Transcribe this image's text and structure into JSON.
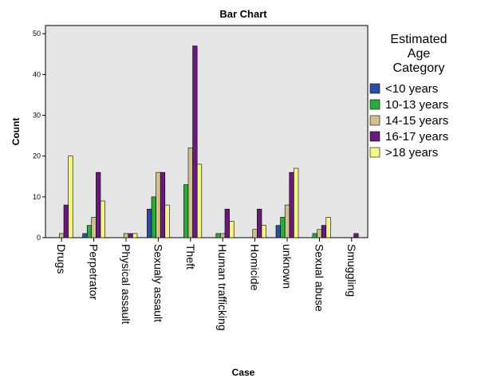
{
  "chart_data": {
    "type": "bar",
    "title": "Bar Chart",
    "xlabel": "Case",
    "ylabel": "Count",
    "ylim": [
      0,
      52
    ],
    "yticks": [
      0,
      10,
      20,
      30,
      40,
      50
    ],
    "grid": false,
    "legend_position": "right",
    "legend_title": [
      "Estimated",
      "Age",
      "Category"
    ],
    "categories": [
      "Drugs",
      "Perpetrator",
      "Physical assault",
      "Sexualy assault",
      "Theft",
      "Human trafficking",
      "Homicide",
      "unknown",
      "Sexual abuse",
      "Smuggling"
    ],
    "series": [
      {
        "name": "<10 years",
        "color": "#2d4ea0",
        "values": [
          0,
          1,
          0,
          7,
          0,
          0,
          0,
          3,
          0,
          0
        ]
      },
      {
        "name": "10-13 years",
        "color": "#2bab3c",
        "values": [
          0,
          3,
          0,
          10,
          13,
          1,
          0,
          5,
          1,
          0
        ]
      },
      {
        "name": "14-15 years",
        "color": "#d2c190",
        "values": [
          1,
          5,
          1,
          16,
          22,
          1,
          2,
          8,
          2,
          0
        ]
      },
      {
        "name": "16-17 years",
        "color": "#6a1a78",
        "values": [
          8,
          16,
          1,
          16,
          47,
          7,
          7,
          16,
          3,
          1
        ]
      },
      {
        "name": ">18 years",
        "color": "#f6f58a",
        "values": [
          20,
          9,
          1,
          8,
          18,
          4,
          3,
          17,
          5,
          0
        ]
      }
    ]
  }
}
